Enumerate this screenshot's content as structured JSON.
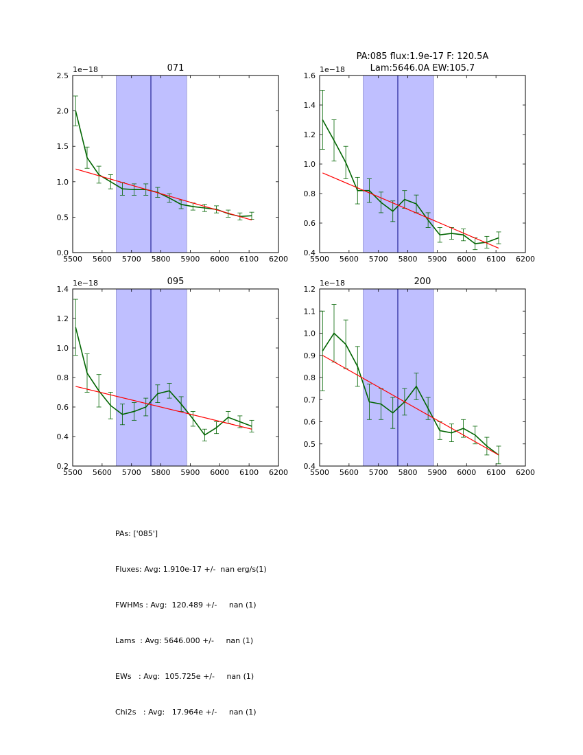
{
  "chart_data": [
    {
      "type": "line",
      "title": "071",
      "offset_label": "1e−18",
      "xlim": [
        5500,
        6200
      ],
      "ylim": [
        0.0,
        2.5
      ],
      "xticks": [
        "5500",
        "5600",
        "5700",
        "5800",
        "5900",
        "6000",
        "6100",
        "6200"
      ],
      "yticks": [
        "0.0",
        "0.5",
        "1.0",
        "1.5",
        "2.0",
        "2.5"
      ],
      "shaded_region": [
        5648,
        5888
      ],
      "vline": 5766,
      "series": [
        {
          "name": "flux",
          "color": "#006400",
          "x": [
            5510,
            5549,
            5589,
            5629,
            5669,
            5709,
            5749,
            5789,
            5829,
            5869,
            5909,
            5949,
            5989,
            6029,
            6069,
            6109
          ],
          "y": [
            2.0,
            1.34,
            1.1,
            1.0,
            0.9,
            0.89,
            0.89,
            0.85,
            0.77,
            0.68,
            0.65,
            0.63,
            0.61,
            0.55,
            0.51,
            0.52
          ],
          "err": [
            0.21,
            0.15,
            0.12,
            0.1,
            0.09,
            0.08,
            0.08,
            0.07,
            0.06,
            0.06,
            0.05,
            0.05,
            0.05,
            0.05,
            0.05,
            0.05
          ]
        },
        {
          "name": "fit",
          "color": "#ff0000",
          "x": [
            5510,
            6109
          ],
          "y": [
            1.18,
            0.46
          ]
        }
      ]
    },
    {
      "type": "line",
      "title": "PA:085 flux:1.9e-17 F: 120.5A",
      "subtitle": "Lam:5646.0A EW:105.7",
      "offset_label": "1e−18",
      "xlim": [
        5500,
        6200
      ],
      "ylim": [
        0.4,
        1.6
      ],
      "xticks": [
        "5500",
        "5600",
        "5700",
        "5800",
        "5900",
        "6000",
        "6100",
        "6200"
      ],
      "yticks": [
        "0.4",
        "0.6",
        "0.8",
        "1.0",
        "1.2",
        "1.4",
        "1.6"
      ],
      "shaded_region": [
        5648,
        5888
      ],
      "vline": 5766,
      "series": [
        {
          "name": "flux",
          "color": "#006400",
          "x": [
            5510,
            5549,
            5589,
            5629,
            5669,
            5709,
            5749,
            5789,
            5829,
            5869,
            5909,
            5949,
            5989,
            6029,
            6069,
            6109
          ],
          "y": [
            1.3,
            1.16,
            1.01,
            0.82,
            0.82,
            0.74,
            0.68,
            0.76,
            0.73,
            0.62,
            0.52,
            0.53,
            0.52,
            0.46,
            0.47,
            0.5
          ],
          "err": [
            0.2,
            0.14,
            0.11,
            0.09,
            0.08,
            0.07,
            0.07,
            0.06,
            0.06,
            0.05,
            0.05,
            0.04,
            0.04,
            0.04,
            0.04,
            0.04
          ]
        },
        {
          "name": "fit",
          "color": "#ff0000",
          "x": [
            5510,
            6109
          ],
          "y": [
            0.94,
            0.43
          ]
        }
      ]
    },
    {
      "type": "line",
      "title": "095",
      "offset_label": "1e−18",
      "xlim": [
        5500,
        6200
      ],
      "ylim": [
        0.2,
        1.4
      ],
      "xticks": [
        "5500",
        "5600",
        "5700",
        "5800",
        "5900",
        "6000",
        "6100",
        "6200"
      ],
      "yticks": [
        "0.2",
        "0.4",
        "0.6",
        "0.8",
        "1.0",
        "1.2",
        "1.4"
      ],
      "shaded_region": [
        5648,
        5888
      ],
      "vline": 5766,
      "series": [
        {
          "name": "flux",
          "color": "#006400",
          "x": [
            5510,
            5549,
            5589,
            5629,
            5669,
            5709,
            5749,
            5789,
            5829,
            5869,
            5909,
            5949,
            5989,
            6029,
            6069,
            6109
          ],
          "y": [
            1.14,
            0.83,
            0.71,
            0.61,
            0.55,
            0.57,
            0.6,
            0.69,
            0.71,
            0.62,
            0.52,
            0.41,
            0.46,
            0.53,
            0.5,
            0.47
          ],
          "err": [
            0.19,
            0.13,
            0.11,
            0.09,
            0.07,
            0.06,
            0.06,
            0.06,
            0.05,
            0.05,
            0.05,
            0.04,
            0.04,
            0.04,
            0.04,
            0.04
          ]
        },
        {
          "name": "fit",
          "color": "#ff0000",
          "x": [
            5510,
            6109
          ],
          "y": [
            0.74,
            0.45
          ]
        }
      ]
    },
    {
      "type": "line",
      "title": "200",
      "offset_label": "1e−18",
      "xlim": [
        5500,
        6200
      ],
      "ylim": [
        0.4,
        1.2
      ],
      "xticks": [
        "5500",
        "5600",
        "5700",
        "5800",
        "5900",
        "6000",
        "6100",
        "6200"
      ],
      "yticks": [
        "0.4",
        "0.5",
        "0.6",
        "0.7",
        "0.8",
        "0.9",
        "1.0",
        "1.1",
        "1.2"
      ],
      "shaded_region": [
        5648,
        5888
      ],
      "vline": 5766,
      "series": [
        {
          "name": "flux",
          "color": "#006400",
          "x": [
            5510,
            5549,
            5589,
            5629,
            5669,
            5709,
            5749,
            5789,
            5829,
            5869,
            5909,
            5949,
            5989,
            6029,
            6069,
            6109
          ],
          "y": [
            0.92,
            1.0,
            0.95,
            0.85,
            0.69,
            0.68,
            0.64,
            0.69,
            0.76,
            0.66,
            0.56,
            0.55,
            0.57,
            0.54,
            0.49,
            0.45
          ],
          "err": [
            0.18,
            0.13,
            0.11,
            0.09,
            0.08,
            0.07,
            0.07,
            0.06,
            0.06,
            0.05,
            0.04,
            0.04,
            0.04,
            0.04,
            0.04,
            0.04
          ]
        },
        {
          "name": "fit",
          "color": "#ff0000",
          "x": [
            5510,
            6109
          ],
          "y": [
            0.9,
            0.45
          ]
        }
      ]
    }
  ],
  "colors": {
    "flux": "#006400",
    "fit": "#ff0000",
    "shade": "#bfbfff",
    "vline": "#000080"
  },
  "stats": [
    "PAs: ['085']",
    "Fluxes: Avg: 1.910e-17 +/-  nan erg/s(1)",
    "FWHMs : Avg:  120.489 +/-     nan (1)",
    "Lams  : Avg: 5646.000 +/-     nan (1)",
    "EWs   : Avg:  105.725e +/-     nan (1)",
    "Chi2s   : Avg:   17.964e +/-     nan (1)"
  ]
}
